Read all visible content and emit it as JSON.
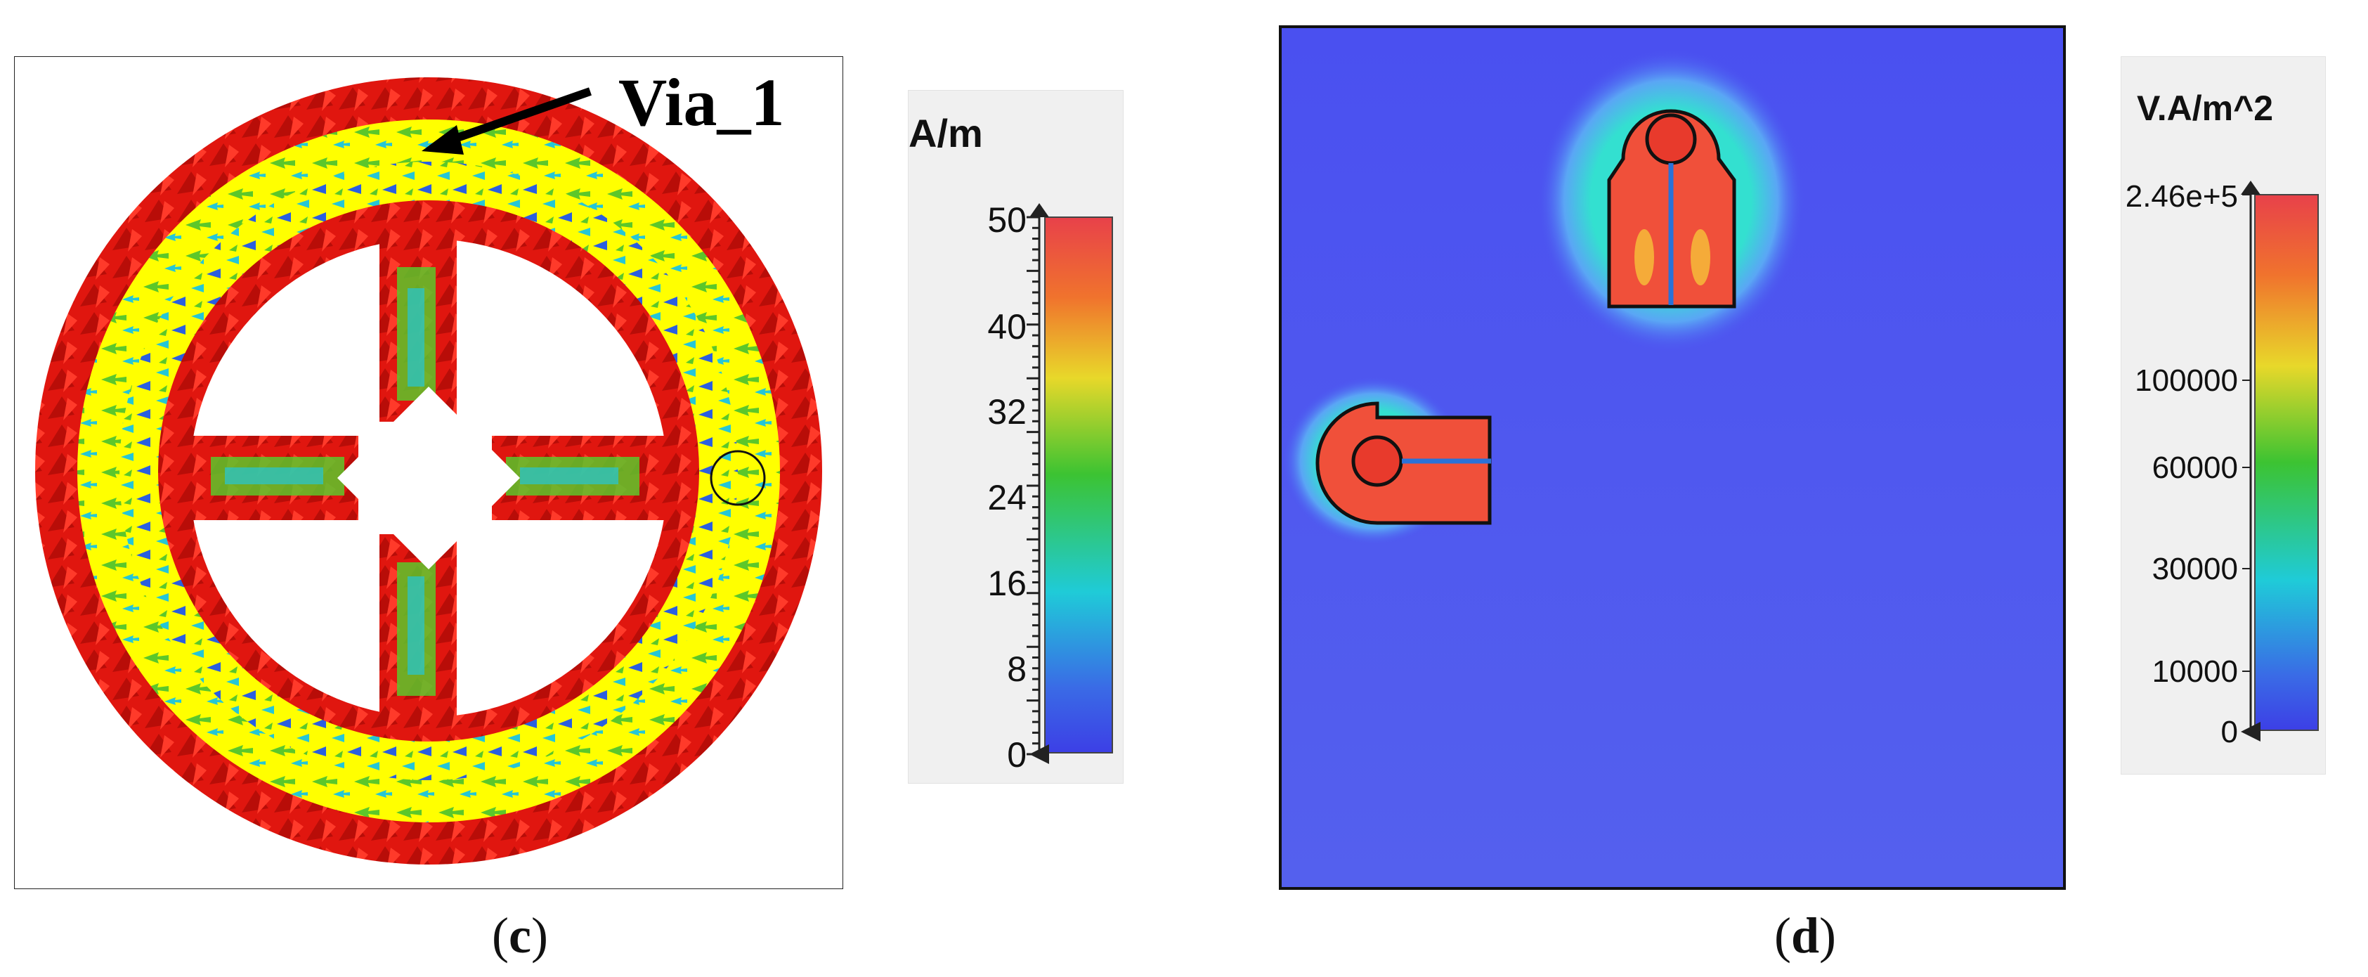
{
  "panel_c": {
    "caption_open": "(",
    "caption_letter": "c",
    "caption_close": ")",
    "annotation": "Via_1",
    "legend": {
      "unit": "A/m",
      "ticks": [
        "50",
        "40",
        "32",
        "24",
        "16",
        "8",
        "0"
      ]
    }
  },
  "panel_d": {
    "caption_open": "(",
    "caption_letter": "d",
    "caption_close": ")",
    "legend": {
      "unit": "V.A/m^2",
      "ticks": [
        "2.46e+5",
        "100000",
        "60000",
        "30000",
        "10000",
        "0"
      ]
    }
  },
  "colors": {
    "field_background": "#4b55f2",
    "arrow_red": "#e0160f",
    "arrow_yellow": "#ffff00",
    "arrow_green": "#5cc72a",
    "arrow_cyan": "#25c6d6",
    "arrow_blue": "#2a5fe0"
  }
}
